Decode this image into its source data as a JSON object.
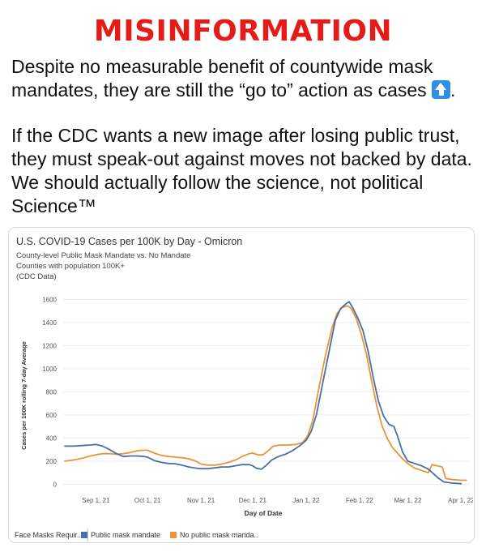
{
  "banner": {
    "title": "MISINFORMATION"
  },
  "post": {
    "paragraph1": "Despite no measurable benefit of countywide mask mandates, they are still the “go to” action as cases",
    "paragraph1_end": ".",
    "paragraph2": "If the CDC wants a new image after losing public trust, they must speak-out against moves not backed by data. We should actually follow the science, not political Science™",
    "emoji": "up-arrow-icon"
  },
  "colors": {
    "banner": "#e41b17",
    "mandate": "#4a6fa5",
    "no_mandate": "#e8943a"
  },
  "chart_data": {
    "type": "line",
    "title": "U.S. COVID-19 Cases per 100K by Day - Omicron",
    "subtitle_lines": [
      "County-level Public Mask Mandate vs. No Mandate",
      "Counties with population 100K+",
      "(CDC Data)"
    ],
    "xlabel": "Day of Date",
    "ylabel": "Cases per 100K rolling 7-day Average",
    "x_ticks": [
      {
        "label": "Sep 1, 21",
        "day": 18
      },
      {
        "label": "Oct 1, 21",
        "day": 48
      },
      {
        "label": "Nov 1, 21",
        "day": 79
      },
      {
        "label": "Dec 1, 21",
        "day": 109
      },
      {
        "label": "Jan 1, 22",
        "day": 140
      },
      {
        "label": "Feb 1, 22",
        "day": 171
      },
      {
        "label": "Mar 1, 22",
        "day": 199
      },
      {
        "label": "Apr 1, 22",
        "day": 230
      }
    ],
    "xlim": [
      0,
      235
    ],
    "y_ticks": [
      0,
      200,
      400,
      600,
      800,
      1000,
      1200,
      1400,
      1600
    ],
    "ylim": [
      -60,
      1680
    ],
    "series": [
      {
        "name": "Public mask mandate",
        "color": "#4a6fa5",
        "points": [
          [
            0,
            330
          ],
          [
            5,
            330
          ],
          [
            10,
            335
          ],
          [
            15,
            340
          ],
          [
            18,
            345
          ],
          [
            22,
            330
          ],
          [
            26,
            300
          ],
          [
            30,
            265
          ],
          [
            34,
            240
          ],
          [
            38,
            245
          ],
          [
            42,
            245
          ],
          [
            46,
            240
          ],
          [
            48,
            235
          ],
          [
            52,
            205
          ],
          [
            56,
            190
          ],
          [
            60,
            180
          ],
          [
            64,
            178
          ],
          [
            68,
            165
          ],
          [
            72,
            150
          ],
          [
            76,
            140
          ],
          [
            79,
            135
          ],
          [
            83,
            135
          ],
          [
            87,
            142
          ],
          [
            91,
            150
          ],
          [
            95,
            150
          ],
          [
            99,
            160
          ],
          [
            103,
            170
          ],
          [
            107,
            170
          ],
          [
            109,
            160
          ],
          [
            111,
            140
          ],
          [
            114,
            130
          ],
          [
            117,
            165
          ],
          [
            120,
            210
          ],
          [
            124,
            240
          ],
          [
            128,
            260
          ],
          [
            132,
            290
          ],
          [
            136,
            330
          ],
          [
            140,
            380
          ],
          [
            143,
            460
          ],
          [
            146,
            600
          ],
          [
            150,
            900
          ],
          [
            154,
            1200
          ],
          [
            157,
            1420
          ],
          [
            160,
            1520
          ],
          [
            163,
            1560
          ],
          [
            165,
            1580
          ],
          [
            167,
            1530
          ],
          [
            170,
            1440
          ],
          [
            173,
            1330
          ],
          [
            176,
            1150
          ],
          [
            179,
            920
          ],
          [
            182,
            720
          ],
          [
            185,
            590
          ],
          [
            188,
            520
          ],
          [
            191,
            500
          ],
          [
            193,
            420
          ],
          [
            196,
            280
          ],
          [
            199,
            200
          ],
          [
            203,
            180
          ],
          [
            207,
            160
          ],
          [
            211,
            130
          ],
          [
            214,
            90
          ],
          [
            217,
            50
          ],
          [
            220,
            20
          ],
          [
            225,
            10
          ],
          [
            230,
            5
          ]
        ]
      },
      {
        "name": "No public mask mandate",
        "color": "#e8943a",
        "points": [
          [
            0,
            200
          ],
          [
            5,
            210
          ],
          [
            10,
            225
          ],
          [
            15,
            245
          ],
          [
            18,
            255
          ],
          [
            22,
            265
          ],
          [
            26,
            265
          ],
          [
            30,
            260
          ],
          [
            34,
            265
          ],
          [
            38,
            275
          ],
          [
            42,
            290
          ],
          [
            46,
            295
          ],
          [
            48,
            295
          ],
          [
            52,
            270
          ],
          [
            56,
            250
          ],
          [
            60,
            240
          ],
          [
            64,
            235
          ],
          [
            68,
            230
          ],
          [
            72,
            220
          ],
          [
            76,
            200
          ],
          [
            79,
            175
          ],
          [
            83,
            165
          ],
          [
            87,
            165
          ],
          [
            91,
            175
          ],
          [
            95,
            190
          ],
          [
            99,
            210
          ],
          [
            103,
            240
          ],
          [
            107,
            265
          ],
          [
            109,
            270
          ],
          [
            112,
            255
          ],
          [
            115,
            255
          ],
          [
            118,
            290
          ],
          [
            121,
            330
          ],
          [
            125,
            340
          ],
          [
            130,
            340
          ],
          [
            134,
            345
          ],
          [
            138,
            360
          ],
          [
            141,
            420
          ],
          [
            144,
            560
          ],
          [
            147,
            800
          ],
          [
            151,
            1100
          ],
          [
            155,
            1350
          ],
          [
            158,
            1480
          ],
          [
            161,
            1530
          ],
          [
            164,
            1545
          ],
          [
            166,
            1525
          ],
          [
            169,
            1440
          ],
          [
            172,
            1300
          ],
          [
            175,
            1130
          ],
          [
            178,
            900
          ],
          [
            181,
            680
          ],
          [
            184,
            510
          ],
          [
            187,
            400
          ],
          [
            190,
            320
          ],
          [
            193,
            270
          ],
          [
            196,
            220
          ],
          [
            199,
            180
          ],
          [
            203,
            140
          ],
          [
            207,
            120
          ],
          [
            211,
            100
          ],
          [
            213,
            170
          ],
          [
            216,
            160
          ],
          [
            219,
            150
          ],
          [
            221,
            50
          ],
          [
            225,
            40
          ],
          [
            230,
            35
          ],
          [
            233,
            35
          ]
        ]
      }
    ],
    "legend_title": "Face Masks Requir..",
    "legend_labels": [
      "Public mask mandate",
      "No public mask manda.."
    ]
  }
}
